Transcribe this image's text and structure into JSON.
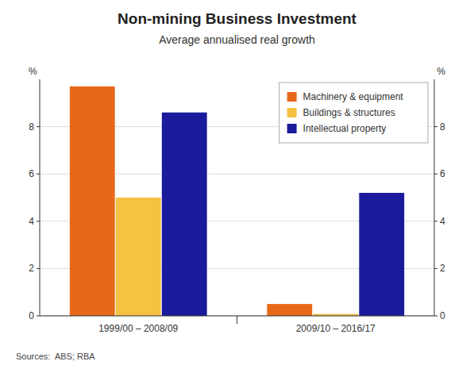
{
  "chart_data": {
    "type": "bar",
    "title": "Non-mining Business Investment",
    "subtitle": "Average annualised real growth",
    "source": "Sources:  ABS; RBA",
    "categories": [
      "1999/00 – 2008/09",
      "2009/10 – 2016/17"
    ],
    "series": [
      {
        "name": "Machinery & equipment",
        "color": "#E8681A",
        "values": [
          9.7,
          0.5
        ]
      },
      {
        "name": "Buildings & structures",
        "color": "#F5C242",
        "values": [
          5.0,
          0.08
        ]
      },
      {
        "name": "Intellectual property",
        "color": "#1A1A9C",
        "values": [
          8.6,
          5.2
        ]
      }
    ],
    "ylabel": "%",
    "ylim": [
      0,
      10
    ],
    "yticks": [
      0,
      2,
      4,
      6,
      8
    ],
    "y2label": "%",
    "y2lim": [
      0,
      10
    ],
    "y2ticks": [
      0,
      2,
      4,
      6,
      8
    ],
    "grid": true,
    "legend": "upper right"
  }
}
